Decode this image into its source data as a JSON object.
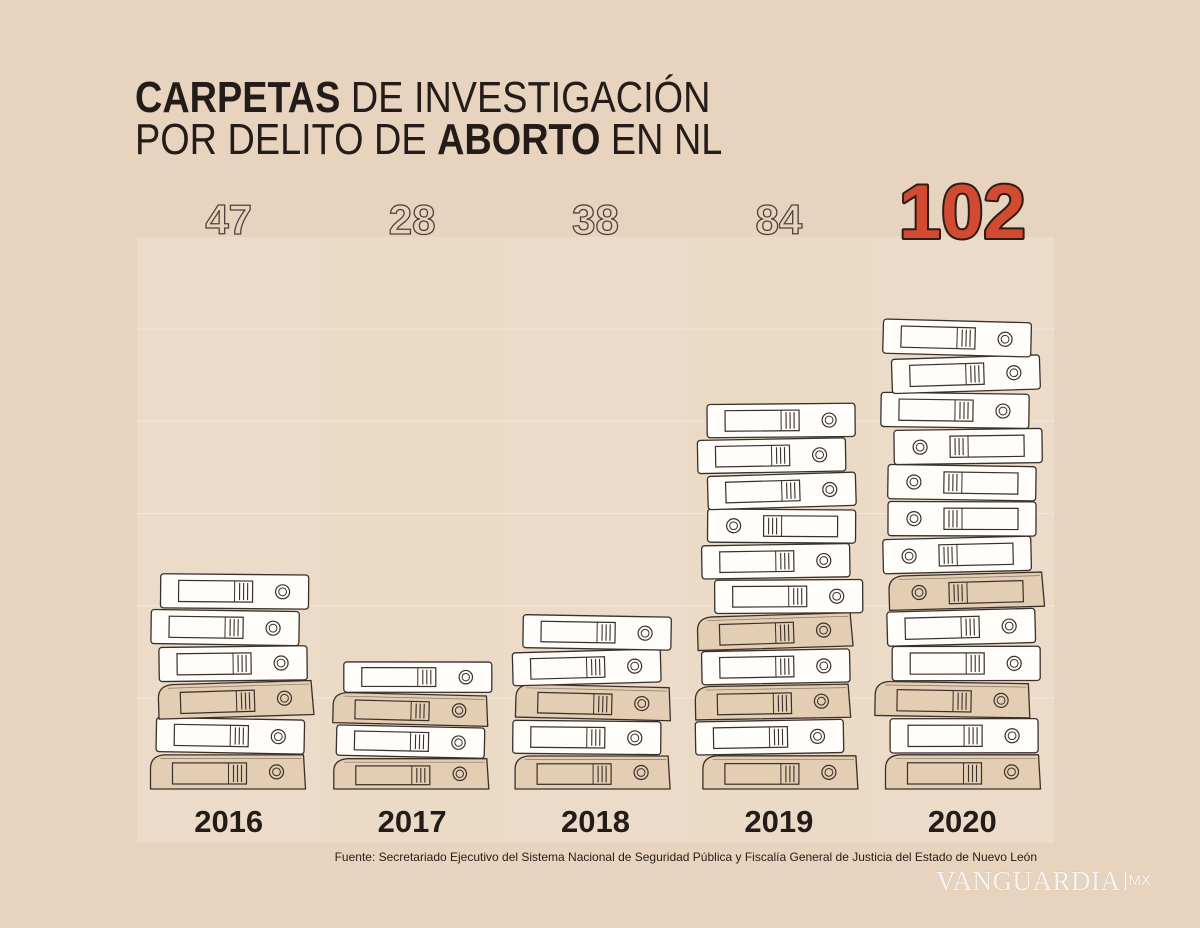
{
  "chart_data": {
    "type": "bar",
    "title": {
      "line1": [
        "CARPETAS",
        "DE INVESTIGACIÓN"
      ],
      "line2": [
        "POR DELITO DE",
        "ABORTO",
        "EN NL"
      ]
    },
    "categories": [
      "2016",
      "2017",
      "2018",
      "2019",
      "2020"
    ],
    "values": [
      47,
      28,
      38,
      84,
      102
    ],
    "highlight": [
      false,
      false,
      false,
      false,
      true
    ],
    "ylim": [
      0,
      120
    ],
    "grid": true,
    "source": "Fuente: Secretariado Ejecutivo del Sistema Nacional de Seguridad Pública y Fiscalía General de Justicia del Estado de Nuevo León"
  },
  "brand": {
    "logo_text": "VANGUARDIA",
    "logo_suffix": "MX"
  },
  "colors": {
    "background": "#e8d4be",
    "highlight": "#d24a2f",
    "binder": "#fffdfa",
    "binder_alt": "#e3cdb3",
    "ink": "#3a2f29",
    "text": "#231c18"
  }
}
